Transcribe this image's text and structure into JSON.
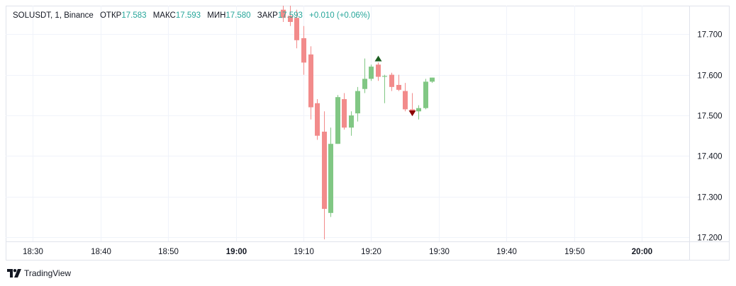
{
  "legend": {
    "symbol": "SOLUSDT, 1, Binance",
    "open_label": "ОТКР",
    "open": "17.583",
    "high_label": "МАКС",
    "high": "17.593",
    "low_label": "МИН",
    "low": "17.580",
    "close_label": "ЗАКР",
    "close": "17.593",
    "change": "+0.010 (+0.06%)"
  },
  "colors": {
    "up": "#26a69a",
    "up_body": "#81c784",
    "down": "#ef5350",
    "down_body": "#f28b8b",
    "grid": "#f0f3fa",
    "buy_marker": "#1b5e20",
    "sell_marker": "#8b0000"
  },
  "footer": {
    "brand": "TradingView",
    "logo_icon": "tradingview-logo-icon"
  },
  "chart_data": {
    "type": "candlestick",
    "x_ticks": [
      "18:30",
      "18:40",
      "18:50",
      "19:00",
      "19:10",
      "19:20",
      "19:30",
      "19:40",
      "19:50",
      "20:00"
    ],
    "bold_x_ticks": [
      "19:00",
      "20:00"
    ],
    "y_ticks": [
      "17.700",
      "17.600",
      "17.500",
      "17.400",
      "17.300",
      "17.200"
    ],
    "ylim": [
      17.19,
      17.77
    ],
    "xlim": [
      "18:26",
      "20:07"
    ],
    "grid": true,
    "candles": [
      {
        "t": "19:07",
        "o": 17.76,
        "h": 17.77,
        "l": 17.73,
        "c": 17.74
      },
      {
        "t": "19:08",
        "o": 17.745,
        "h": 17.77,
        "l": 17.72,
        "c": 17.73
      },
      {
        "t": "19:09",
        "o": 17.74,
        "h": 17.76,
        "l": 17.665,
        "c": 17.685
      },
      {
        "t": "19:10",
        "o": 17.69,
        "h": 17.72,
        "l": 17.6,
        "c": 17.63
      },
      {
        "t": "19:11",
        "o": 17.65,
        "h": 17.67,
        "l": 17.49,
        "c": 17.52
      },
      {
        "t": "19:12",
        "o": 17.53,
        "h": 17.54,
        "l": 17.44,
        "c": 17.45
      },
      {
        "t": "19:13",
        "o": 17.46,
        "h": 17.51,
        "l": 17.195,
        "c": 17.27
      },
      {
        "t": "19:14",
        "o": 17.26,
        "h": 17.47,
        "l": 17.25,
        "c": 17.43
      },
      {
        "t": "19:15",
        "o": 17.43,
        "h": 17.55,
        "l": 17.43,
        "c": 17.545
      },
      {
        "t": "19:16",
        "o": 17.54,
        "h": 17.555,
        "l": 17.465,
        "c": 17.47
      },
      {
        "t": "19:17",
        "o": 17.47,
        "h": 17.51,
        "l": 17.45,
        "c": 17.5
      },
      {
        "t": "19:18",
        "o": 17.505,
        "h": 17.57,
        "l": 17.485,
        "c": 17.56
      },
      {
        "t": "19:19",
        "o": 17.565,
        "h": 17.64,
        "l": 17.555,
        "c": 17.59
      },
      {
        "t": "19:20",
        "o": 17.59,
        "h": 17.625,
        "l": 17.585,
        "c": 17.62
      },
      {
        "t": "19:21",
        "o": 17.625,
        "h": 17.63,
        "l": 17.585,
        "c": 17.595
      },
      {
        "t": "19:22",
        "o": 17.595,
        "h": 17.6,
        "l": 17.53,
        "c": 17.597
      },
      {
        "t": "19:23",
        "o": 17.6,
        "h": 17.605,
        "l": 17.56,
        "c": 17.57
      },
      {
        "t": "19:24",
        "o": 17.575,
        "h": 17.6,
        "l": 17.56,
        "c": 17.563
      },
      {
        "t": "19:25",
        "o": 17.56,
        "h": 17.58,
        "l": 17.51,
        "c": 17.515
      },
      {
        "t": "19:26",
        "o": 17.515,
        "h": 17.555,
        "l": 17.5,
        "c": 17.508
      },
      {
        "t": "19:27",
        "o": 17.51,
        "h": 17.525,
        "l": 17.49,
        "c": 17.518
      },
      {
        "t": "19:28",
        "o": 17.518,
        "h": 17.59,
        "l": 17.515,
        "c": 17.583
      },
      {
        "t": "19:29",
        "o": 17.583,
        "h": 17.593,
        "l": 17.58,
        "c": 17.593
      }
    ],
    "markers": [
      {
        "t": "19:21",
        "type": "buy",
        "price": 17.64
      },
      {
        "t": "19:26",
        "type": "sell",
        "price": 17.505
      }
    ]
  }
}
